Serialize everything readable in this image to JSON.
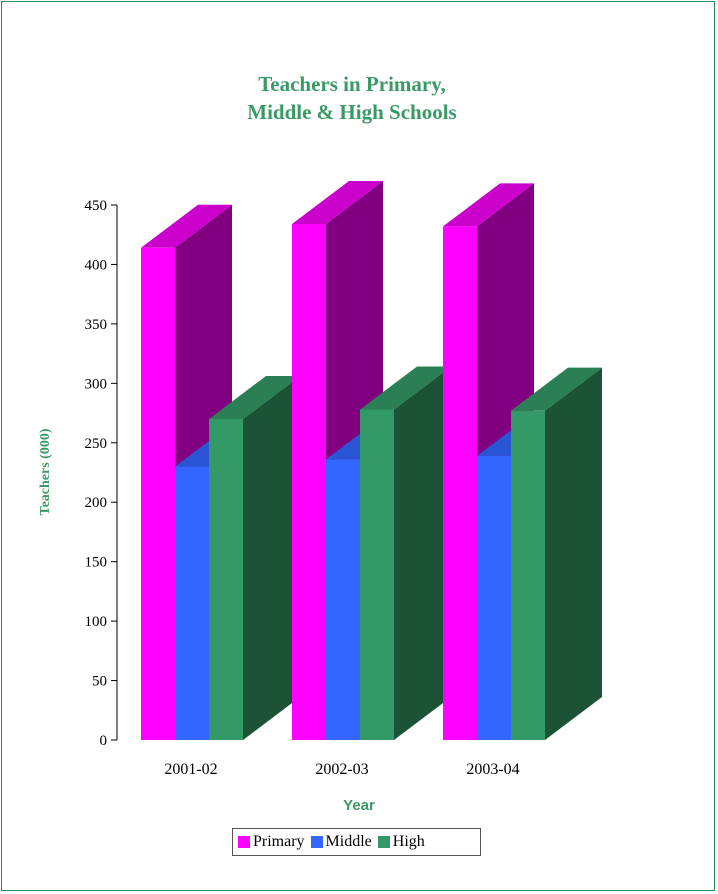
{
  "chart_data": {
    "type": "bar",
    "title_line1": "Teachers in Primary,",
    "title_line2": "Middle & High Schools",
    "xlabel": "Year",
    "ylabel": "Teachers (000)",
    "categories": [
      "2001-02",
      "2002-03",
      "2003-04"
    ],
    "series": [
      {
        "name": "Primary",
        "values": [
          414,
          434,
          432
        ],
        "color": "#ff00ff",
        "top_color": "#cc00cc",
        "side_color": "#800080"
      },
      {
        "name": "Middle",
        "values": [
          230,
          236,
          239
        ],
        "color": "#3366ff",
        "top_color": "#2a55d4",
        "side_color": "#1f3f9e"
      },
      {
        "name": "High",
        "values": [
          270,
          278,
          277
        ],
        "color": "#339966",
        "top_color": "#2a7f55",
        "side_color": "#1c5236"
      }
    ],
    "yticks": [
      0,
      50,
      100,
      150,
      200,
      250,
      300,
      350,
      400,
      450
    ],
    "ylim": [
      0,
      450
    ],
    "legend": "bottom"
  }
}
